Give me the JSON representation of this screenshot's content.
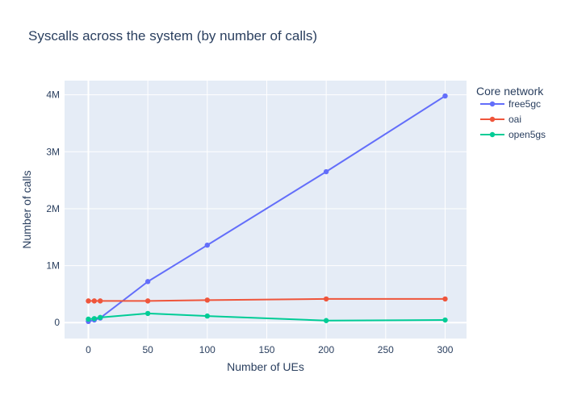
{
  "chart_data": {
    "type": "line",
    "title": "Syscalls across the system (by number of calls)",
    "xlabel": "Number of UEs",
    "ylabel": "Number of calls",
    "xlim": [
      -20,
      318
    ],
    "ylim": [
      -280000,
      4250000
    ],
    "x_ticks": [
      0,
      50,
      100,
      150,
      200,
      250,
      300
    ],
    "x_tick_labels": [
      "0",
      "50",
      "100",
      "150",
      "200",
      "250",
      "300"
    ],
    "y_ticks": [
      0,
      1000000,
      2000000,
      3000000,
      4000000
    ],
    "y_tick_labels": [
      "0",
      "1M",
      "2M",
      "3M",
      "4M"
    ],
    "grid": true,
    "legend_title": "Core network",
    "legend_position": "right",
    "x": [
      0,
      5,
      10,
      50,
      100,
      200,
      300
    ],
    "series": [
      {
        "name": "free5gc",
        "color": "#636efa",
        "values": [
          20000,
          45000,
          80000,
          720000,
          1360000,
          2650000,
          3980000
        ]
      },
      {
        "name": "oai",
        "color": "#ef553b",
        "values": [
          380000,
          380000,
          380000,
          380000,
          395000,
          415000,
          415000
        ]
      },
      {
        "name": "open5gs",
        "color": "#00cc96",
        "values": [
          60000,
          70000,
          90000,
          160000,
          115000,
          35000,
          45000
        ]
      }
    ]
  }
}
